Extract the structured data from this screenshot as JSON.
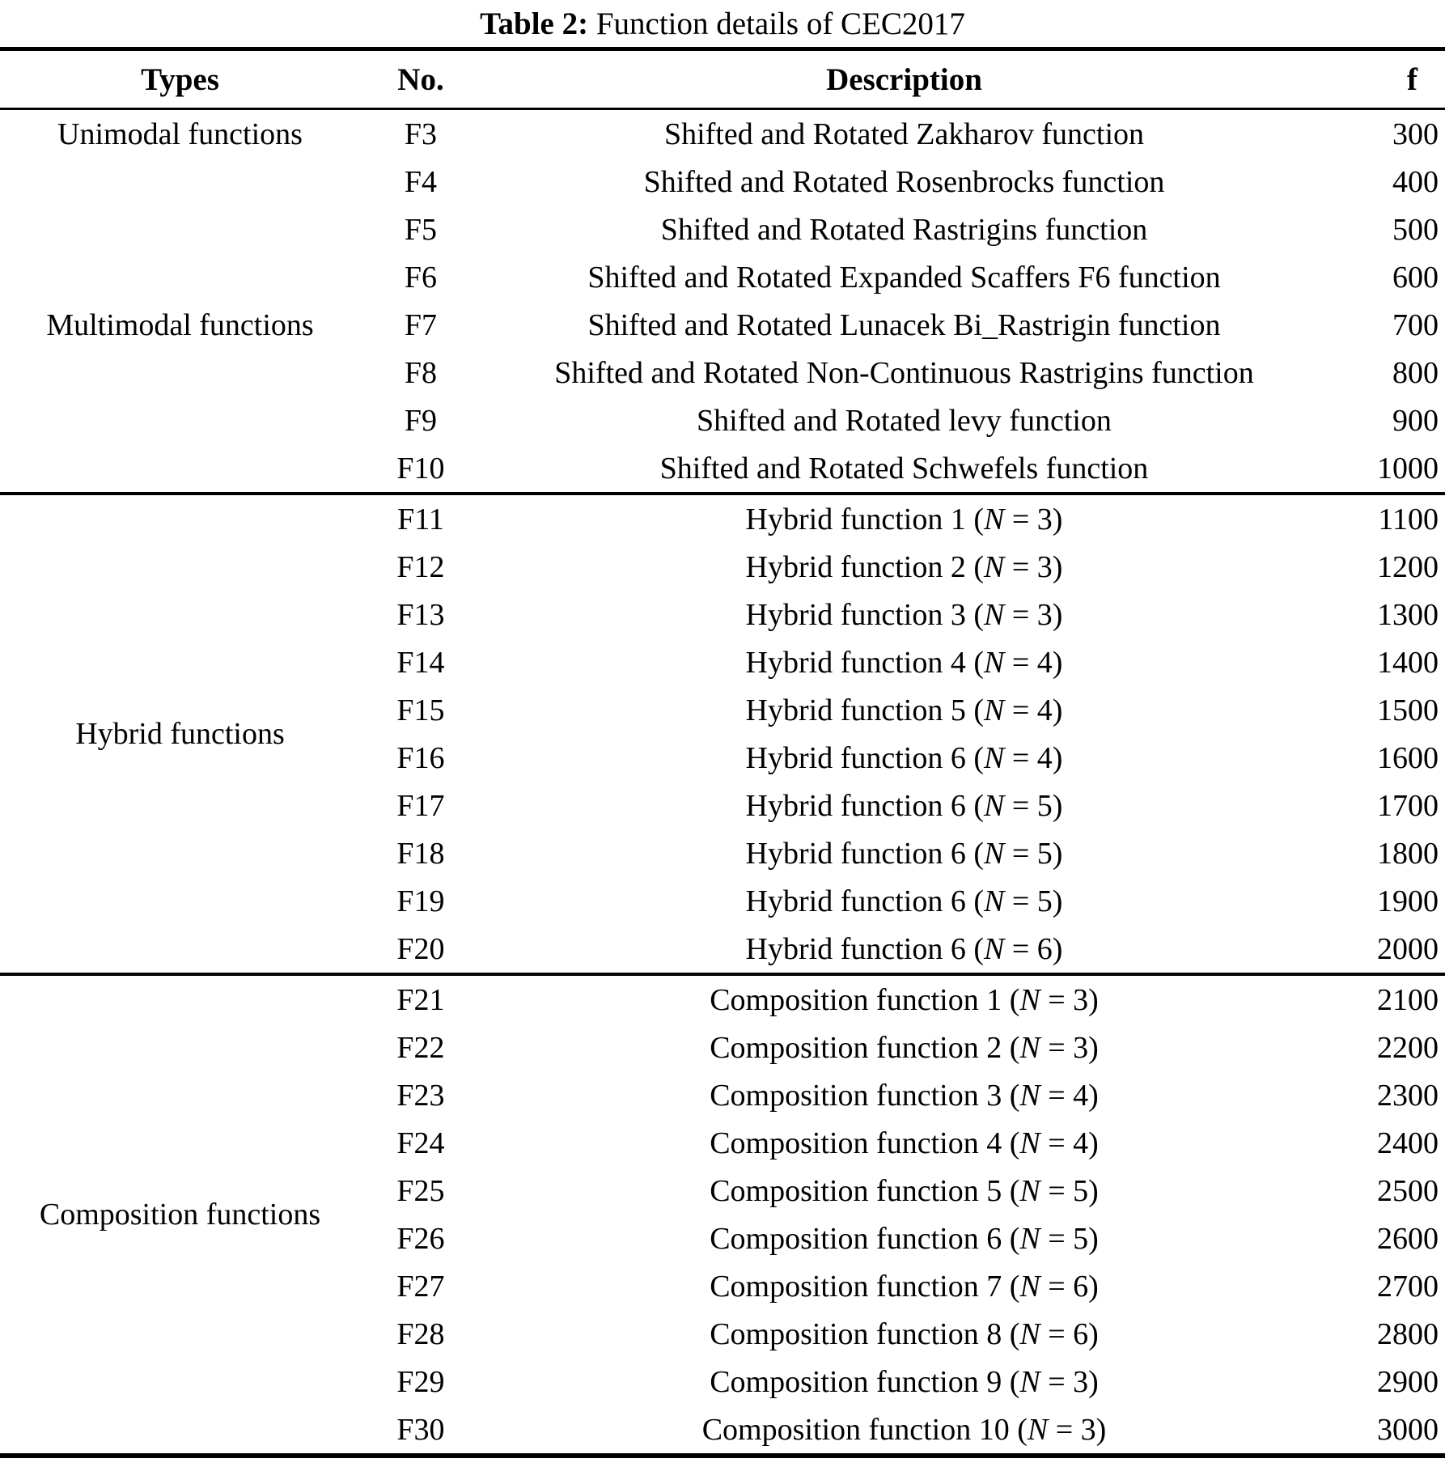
{
  "caption": {
    "label": "Table 2:",
    "text": "Function details of CEC2017"
  },
  "table": {
    "headers": {
      "types": "Types",
      "no": "No.",
      "description": "Description",
      "f": "f"
    },
    "sections": [
      {
        "name": "unimodal-multimodal",
        "rows": [
          {
            "type": "Unimodal functions",
            "no": "F3",
            "description": "Shifted and Rotated Zakharov function",
            "n": null,
            "f": "300"
          },
          {
            "type": "",
            "no": "F4",
            "description": "Shifted and Rotated Rosenbrocks function",
            "n": null,
            "f": "400"
          },
          {
            "type": "",
            "no": "F5",
            "description": "Shifted and Rotated Rastrigins function",
            "n": null,
            "f": "500"
          },
          {
            "type": "",
            "no": "F6",
            "description": "Shifted and Rotated Expanded Scaffers F6 function",
            "n": null,
            "f": "600"
          },
          {
            "type": "Multimodal functions",
            "no": "F7",
            "description": "Shifted and Rotated Lunacek Bi_Rastrigin function",
            "n": null,
            "f": "700"
          },
          {
            "type": "",
            "no": "F8",
            "description": "Shifted and Rotated Non-Continuous Rastrigins function",
            "n": null,
            "f": "800"
          },
          {
            "type": "",
            "no": "F9",
            "description": "Shifted and Rotated levy function",
            "n": null,
            "f": "900"
          },
          {
            "type": "",
            "no": "F10",
            "description": "Shifted and Rotated Schwefels function",
            "n": null,
            "f": "1000"
          }
        ]
      },
      {
        "name": "hybrid",
        "group_label": "Hybrid functions",
        "rows": [
          {
            "no": "F11",
            "description": "Hybrid function 1",
            "n": "3",
            "f": "1100"
          },
          {
            "no": "F12",
            "description": "Hybrid function 2",
            "n": "3",
            "f": "1200"
          },
          {
            "no": "F13",
            "description": "Hybrid function 3",
            "n": "3",
            "f": "1300"
          },
          {
            "no": "F14",
            "description": "Hybrid function 4",
            "n": "4",
            "f": "1400"
          },
          {
            "no": "F15",
            "description": "Hybrid function 5",
            "n": "4",
            "f": "1500"
          },
          {
            "no": "F16",
            "description": "Hybrid function 6",
            "n": "4",
            "f": "1600"
          },
          {
            "no": "F17",
            "description": "Hybrid function 6",
            "n": "5",
            "f": "1700"
          },
          {
            "no": "F18",
            "description": "Hybrid function 6",
            "n": "5",
            "f": "1800"
          },
          {
            "no": "F19",
            "description": "Hybrid function 6",
            "n": "5",
            "f": "1900"
          },
          {
            "no": "F20",
            "description": "Hybrid function 6",
            "n": "6",
            "f": "2000"
          }
        ]
      },
      {
        "name": "composition",
        "group_label": "Composition functions",
        "rows": [
          {
            "no": "F21",
            "description": "Composition function 1",
            "n": "3",
            "f": "2100"
          },
          {
            "no": "F22",
            "description": "Composition function 2",
            "n": "3",
            "f": "2200"
          },
          {
            "no": "F23",
            "description": "Composition function 3",
            "n": "4",
            "f": "2300"
          },
          {
            "no": "F24",
            "description": "Composition function 4",
            "n": "4",
            "f": "2400"
          },
          {
            "no": "F25",
            "description": "Composition function 5",
            "n": "5",
            "f": "2500"
          },
          {
            "no": "F26",
            "description": "Composition function 6",
            "n": "5",
            "f": "2600"
          },
          {
            "no": "F27",
            "description": "Composition function 7",
            "n": "6",
            "f": "2700"
          },
          {
            "no": "F28",
            "description": "Composition function 8",
            "n": "6",
            "f": "2800"
          },
          {
            "no": "F29",
            "description": "Composition function 9",
            "n": "3",
            "f": "2900"
          },
          {
            "no": "F30",
            "description": "Composition function 10",
            "n": "3",
            "f": "3000"
          }
        ]
      }
    ]
  }
}
